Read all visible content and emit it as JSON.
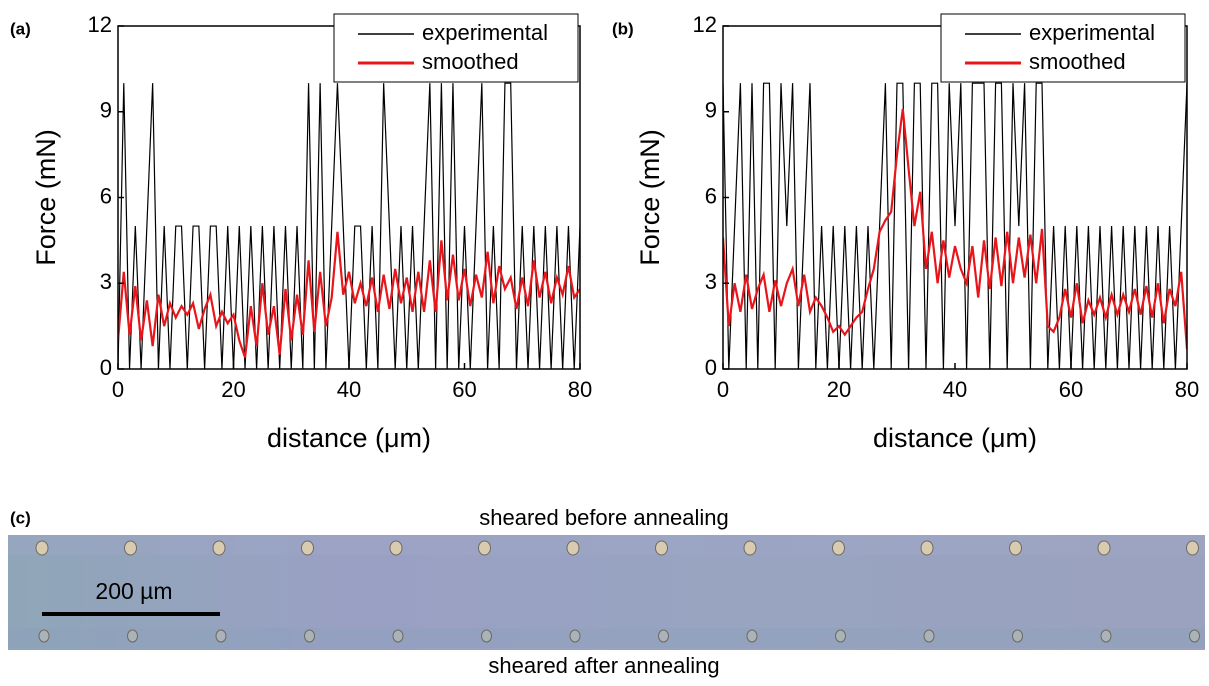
{
  "chart_data": [
    {
      "type": "line",
      "panel_label": "(a)",
      "xlabel": "distance (μm)",
      "ylabel": "Force (mN)",
      "x": [
        0,
        1,
        2,
        3,
        4,
        5,
        6,
        7,
        8,
        9,
        10,
        11,
        12,
        13,
        14,
        15,
        16,
        17,
        18,
        19,
        20,
        21,
        22,
        23,
        24,
        25,
        26,
        27,
        28,
        29,
        30,
        31,
        32,
        33,
        34,
        35,
        36,
        37,
        38,
        39,
        40,
        41,
        42,
        43,
        44,
        45,
        46,
        47,
        48,
        49,
        50,
        51,
        52,
        53,
        54,
        55,
        56,
        57,
        58,
        59,
        60,
        61,
        62,
        63,
        64,
        65,
        66,
        67,
        68,
        69,
        70,
        71,
        72,
        73,
        74,
        75,
        76,
        77,
        78,
        79,
        80
      ],
      "series": [
        {
          "name": "experimental",
          "color": "#000000",
          "values": [
            0,
            10,
            0,
            5,
            0,
            5,
            10,
            0,
            5,
            0,
            5,
            5,
            0,
            5,
            5,
            0,
            5,
            5,
            0,
            5,
            0,
            5,
            0,
            5,
            0,
            5,
            0,
            5,
            0,
            5,
            0,
            5,
            0,
            10,
            0,
            10,
            0,
            5,
            10,
            5,
            0,
            5,
            5,
            0,
            5,
            0,
            10,
            5,
            0,
            5,
            0,
            5,
            0,
            5,
            10,
            0,
            10,
            0,
            10,
            0,
            5,
            0,
            5,
            10,
            0,
            5,
            0,
            10,
            10,
            0,
            5,
            0,
            5,
            0,
            5,
            0,
            5,
            0,
            5,
            0,
            5
          ]
        },
        {
          "name": "smoothed",
          "color": "#e8161b",
          "values": [
            1.0,
            3.4,
            1.2,
            2.9,
            1.0,
            2.4,
            0.8,
            2.6,
            1.5,
            2.3,
            1.8,
            2.2,
            1.9,
            2.3,
            1.4,
            2.1,
            2.6,
            1.5,
            2.0,
            1.6,
            1.9,
            1.0,
            0.4,
            2.2,
            0.8,
            3.0,
            1.2,
            2.2,
            0.5,
            2.8,
            1.0,
            2.6,
            1.2,
            3.8,
            1.3,
            3.4,
            1.5,
            2.5,
            4.8,
            2.6,
            3.4,
            2.3,
            3.0,
            2.2,
            3.2,
            2.0,
            3.3,
            2.1,
            3.5,
            2.3,
            3.2,
            2.0,
            3.4,
            2.0,
            3.8,
            2.0,
            4.5,
            2.4,
            4.0,
            2.4,
            3.5,
            2.2,
            3.3,
            2.5,
            4.1,
            2.3,
            3.6,
            2.8,
            3.2,
            2.1,
            3.2,
            2.2,
            3.8,
            2.5,
            3.4,
            2.3,
            3.2,
            2.6,
            3.6,
            2.5,
            2.8
          ]
        }
      ],
      "xlim": [
        0,
        80
      ],
      "xticks": [
        0,
        20,
        40,
        60,
        80
      ],
      "ylim": [
        0,
        12
      ],
      "yticks": [
        0,
        3,
        6,
        9,
        12
      ],
      "legend": "upper right"
    },
    {
      "type": "line",
      "panel_label": "(b)",
      "xlabel": "distance (μm)",
      "ylabel": "Force (mN)",
      "x": [
        0,
        1,
        2,
        3,
        4,
        5,
        6,
        7,
        8,
        9,
        10,
        11,
        12,
        13,
        14,
        15,
        16,
        17,
        18,
        19,
        20,
        21,
        22,
        23,
        24,
        25,
        26,
        27,
        28,
        29,
        30,
        31,
        32,
        33,
        34,
        35,
        36,
        37,
        38,
        39,
        40,
        41,
        42,
        43,
        44,
        45,
        46,
        47,
        48,
        49,
        50,
        51,
        52,
        53,
        54,
        55,
        56,
        57,
        58,
        59,
        60,
        61,
        62,
        63,
        64,
        65,
        66,
        67,
        68,
        69,
        70,
        71,
        72,
        73,
        74,
        75,
        76,
        77,
        78,
        79,
        80
      ],
      "series": [
        {
          "name": "experimental",
          "color": "#000000",
          "values": [
            10,
            0,
            5,
            10,
            0,
            10,
            0,
            10,
            10,
            0,
            10,
            5,
            10,
            0,
            5,
            10,
            0,
            5,
            0,
            5,
            0,
            5,
            0,
            5,
            0,
            5,
            0,
            5,
            10,
            0,
            10,
            10,
            0,
            10,
            10,
            0,
            10,
            10,
            0,
            10,
            5,
            10,
            0,
            10,
            10,
            10,
            0,
            10,
            10,
            0,
            10,
            5,
            10,
            0,
            10,
            10,
            0,
            5,
            0,
            5,
            0,
            5,
            0,
            5,
            0,
            5,
            0,
            5,
            0,
            5,
            0,
            5,
            0,
            5,
            0,
            5,
            0,
            5,
            0,
            5,
            10
          ]
        },
        {
          "name": "smoothed",
          "color": "#e8161b",
          "values": [
            4.6,
            1.5,
            3.0,
            2.0,
            3.3,
            2.1,
            2.8,
            3.3,
            2.0,
            3.1,
            2.2,
            3.0,
            3.5,
            2.2,
            3.3,
            2.0,
            2.5,
            2.2,
            1.8,
            1.3,
            1.5,
            1.2,
            1.5,
            1.8,
            2.0,
            2.8,
            3.5,
            4.8,
            5.2,
            5.5,
            7.5,
            9.1,
            7.0,
            5.0,
            6.2,
            3.5,
            4.8,
            3.0,
            4.5,
            3.2,
            4.3,
            3.5,
            3.0,
            4.3,
            2.5,
            4.5,
            2.8,
            4.6,
            2.9,
            4.8,
            3.0,
            4.6,
            3.2,
            4.7,
            3.0,
            4.9,
            1.5,
            1.3,
            1.8,
            2.8,
            1.8,
            3.0,
            1.6,
            2.4,
            1.9,
            2.5,
            1.8,
            2.6,
            1.9,
            2.6,
            2.0,
            2.8,
            1.9,
            2.9,
            1.8,
            3.0,
            1.6,
            2.8,
            2.2,
            3.4,
            0.7
          ]
        }
      ],
      "xlim": [
        0,
        80
      ],
      "xticks": [
        0,
        20,
        40,
        60,
        80
      ],
      "ylim": [
        0,
        12
      ],
      "yticks": [
        0,
        3,
        6,
        9,
        12
      ],
      "legend": "upper right"
    }
  ],
  "panel_c": {
    "panel_label": "(c)",
    "caption_top": "sheared before annealing",
    "scale_bar": "200 µm",
    "caption_bottom": "sheared after annealing"
  }
}
